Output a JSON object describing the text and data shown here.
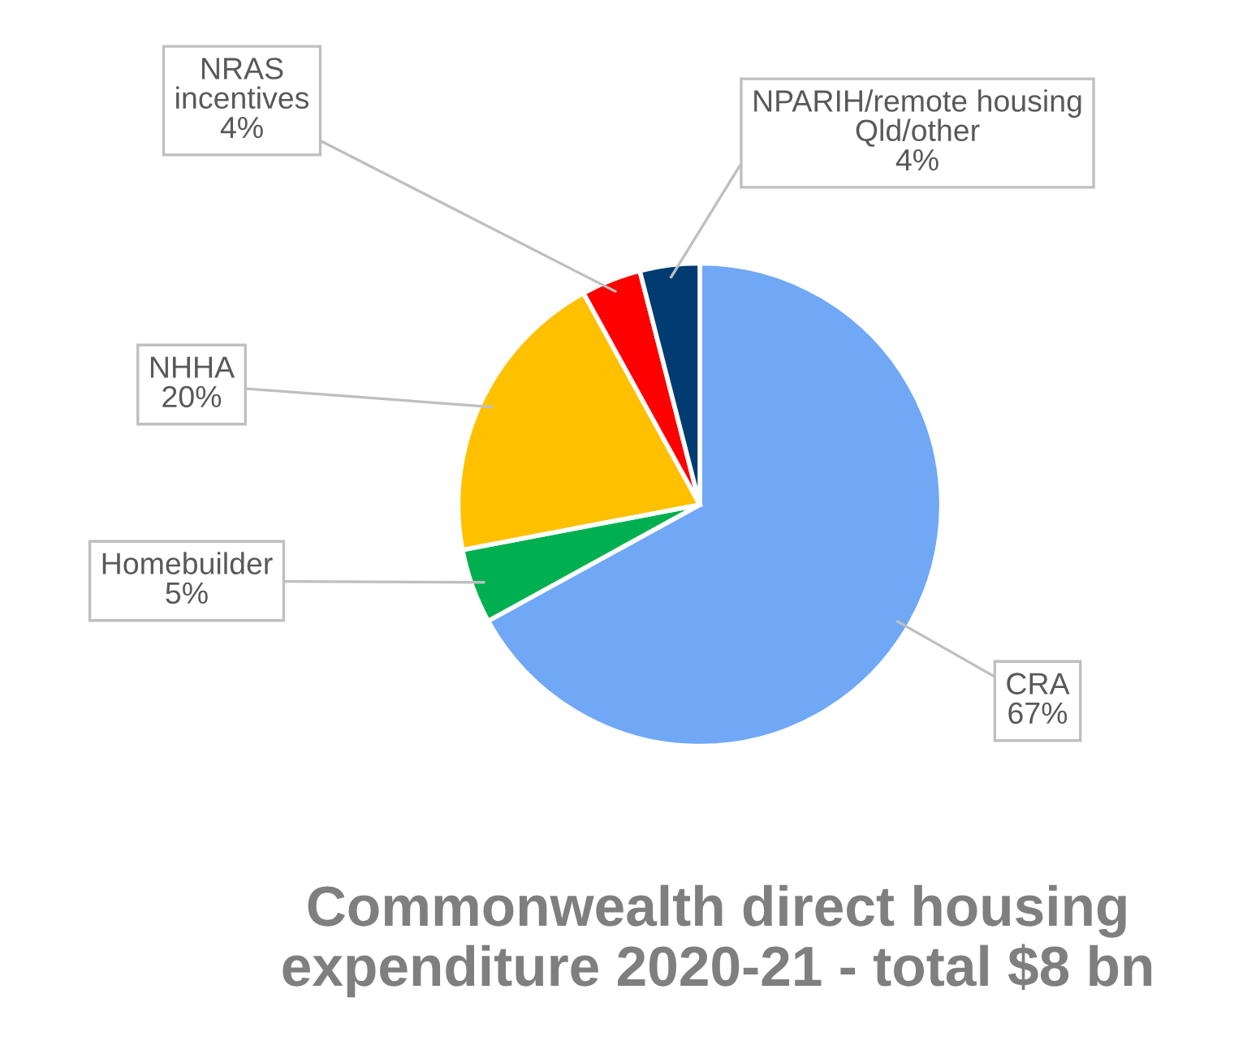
{
  "chart_data": {
    "type": "pie",
    "title": "Commonwealth direct housing expenditure 2020-21 - total $8 bn",
    "categories": [
      "CRA",
      "Homebuilder",
      "NHHA",
      "NRAS incentives",
      "NPARIH/remote housing Qld/other"
    ],
    "values": [
      67,
      5,
      20,
      4,
      4
    ],
    "value_labels": [
      "67%",
      "5%",
      "20%",
      "4%",
      "4%"
    ],
    "colors": [
      "#70a8f6",
      "#00b050",
      "#ffc000",
      "#ff0000",
      "#003c71"
    ],
    "legend": false
  }
}
